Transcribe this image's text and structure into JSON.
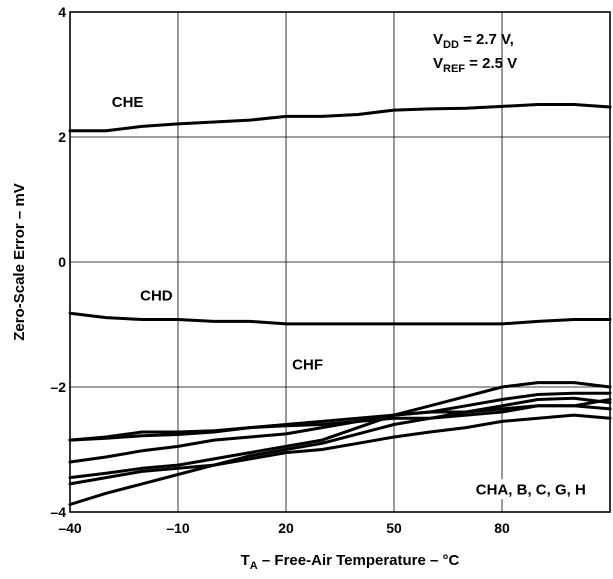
{
  "chart_data": {
    "type": "line",
    "xlabel": {
      "main": "T",
      "sub": "A",
      "rest": " – Free-Air Temperature – °C"
    },
    "ylabel": "Zero-Scale Error – mV",
    "xlim": [
      -40,
      110
    ],
    "ylim": [
      -4,
      4
    ],
    "xticks": [
      -40,
      -10,
      20,
      50,
      80
    ],
    "xtick_labels": [
      "–40",
      "–10",
      "20",
      "50",
      "80"
    ],
    "yticks": [
      -4,
      -2,
      0,
      2,
      4
    ],
    "ytick_labels": [
      "–4",
      "–2",
      "0",
      "2",
      "4"
    ],
    "grid": true,
    "conditions": [
      {
        "main": "V",
        "sub": "DD",
        "rest": " = 2.7 V,"
      },
      {
        "main": "V",
        "sub": "REF",
        "rest": " = 2.5 V"
      }
    ],
    "annotations": [
      {
        "text": "CHE",
        "x": -24,
        "y": 2.5
      },
      {
        "text": "CHD",
        "x": -16,
        "y": -0.6
      },
      {
        "text": "CHF",
        "x": 26,
        "y": -1.7
      },
      {
        "text": "CHA, B, C, G, H",
        "x": 88,
        "y": -3.7
      }
    ],
    "series": [
      {
        "x": [
          -40,
          -30,
          -20,
          -10,
          0,
          10,
          20,
          30,
          40,
          50,
          60,
          70,
          80,
          90,
          100,
          110
        ],
        "y": [
          2.1,
          2.1,
          2.17,
          2.21,
          2.24,
          2.27,
          2.33,
          2.33,
          2.36,
          2.43,
          2.45,
          2.46,
          2.49,
          2.52,
          2.52,
          2.48
        ]
      },
      {
        "x": [
          -40,
          -30,
          -20,
          -10,
          0,
          10,
          20,
          30,
          40,
          50,
          60,
          70,
          80,
          90,
          100,
          110
        ],
        "y": [
          -0.82,
          -0.89,
          -0.92,
          -0.92,
          -0.95,
          -0.95,
          -0.99,
          -0.99,
          -0.99,
          -0.99,
          -0.99,
          -0.99,
          -0.99,
          -0.95,
          -0.92,
          -0.92
        ]
      },
      {
        "x": [
          -40,
          -30,
          -20,
          -10,
          0,
          10,
          20,
          30,
          40,
          50,
          60,
          70,
          80,
          90,
          100,
          110
        ],
        "y": [
          -2.85,
          -2.8,
          -2.72,
          -2.72,
          -2.7,
          -2.65,
          -2.6,
          -2.55,
          -2.5,
          -2.45,
          -2.4,
          -2.3,
          -2.2,
          -2.12,
          -2.1,
          -2.1
        ]
      },
      {
        "x": [
          -40,
          -30,
          -20,
          -10,
          0,
          10,
          20,
          30,
          40,
          50,
          60,
          70,
          80,
          90,
          100,
          110
        ],
        "y": [
          -2.85,
          -2.82,
          -2.78,
          -2.76,
          -2.72,
          -2.65,
          -2.62,
          -2.6,
          -2.55,
          -2.5,
          -2.5,
          -2.45,
          -2.4,
          -2.3,
          -2.3,
          -2.2
        ]
      },
      {
        "x": [
          -40,
          -30,
          -20,
          -10,
          0,
          10,
          20,
          30,
          40,
          50,
          60,
          70,
          80,
          90,
          100,
          110
        ],
        "y": [
          -3.2,
          -3.12,
          -3.02,
          -2.95,
          -2.85,
          -2.8,
          -2.75,
          -2.65,
          -2.55,
          -2.45,
          -2.4,
          -2.4,
          -2.35,
          -2.3,
          -2.3,
          -2.35
        ]
      },
      {
        "x": [
          -40,
          -30,
          -20,
          -10,
          0,
          10,
          20,
          30,
          40,
          50,
          60,
          70,
          80,
          90,
          100,
          110
        ],
        "y": [
          -3.45,
          -3.38,
          -3.3,
          -3.25,
          -3.15,
          -3.05,
          -2.95,
          -2.85,
          -2.65,
          -2.45,
          -2.3,
          -2.15,
          -2.0,
          -1.93,
          -1.93,
          -2.0
        ]
      },
      {
        "x": [
          -40,
          -30,
          -20,
          -10,
          0,
          10,
          20,
          30,
          40,
          50,
          60,
          70,
          80,
          90,
          100,
          110
        ],
        "y": [
          -3.55,
          -3.45,
          -3.35,
          -3.3,
          -3.25,
          -3.1,
          -3.0,
          -2.9,
          -2.75,
          -2.6,
          -2.5,
          -2.4,
          -2.3,
          -2.2,
          -2.18,
          -2.25
        ]
      },
      {
        "x": [
          -40,
          -30,
          -20,
          -10,
          0,
          10,
          20,
          30,
          40,
          50,
          60,
          70,
          80,
          90,
          100,
          110
        ],
        "y": [
          -3.88,
          -3.7,
          -3.55,
          -3.4,
          -3.25,
          -3.15,
          -3.05,
          -3.0,
          -2.9,
          -2.8,
          -2.72,
          -2.65,
          -2.55,
          -2.5,
          -2.45,
          -2.5
        ]
      }
    ]
  }
}
